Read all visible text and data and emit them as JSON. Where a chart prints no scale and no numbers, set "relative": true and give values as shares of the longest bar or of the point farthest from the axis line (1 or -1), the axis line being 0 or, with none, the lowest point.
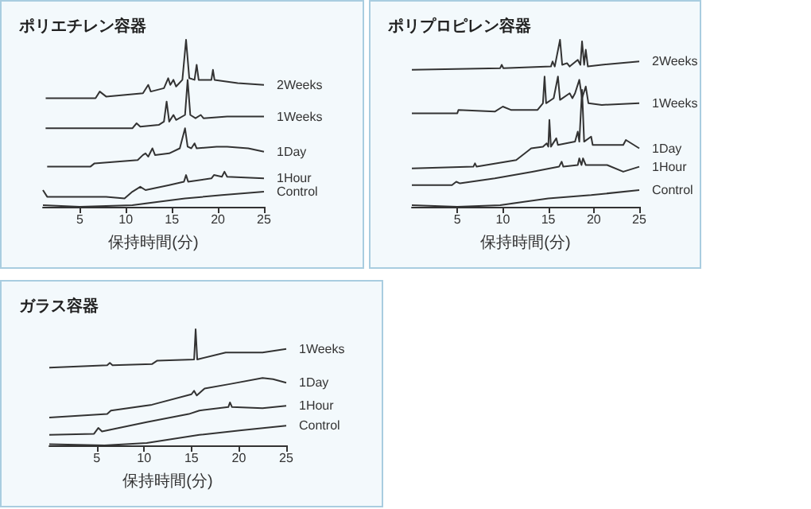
{
  "chart_data": [
    {
      "type": "line",
      "title": "ポリエチレン容器",
      "xlabel": "保持時間(分)",
      "relative": true,
      "marker": "none",
      "xlim": [
        1,
        25
      ],
      "xticks": [
        5,
        10,
        15,
        20,
        25
      ],
      "series": [
        {
          "name": "2Weeks",
          "color": "#333333",
          "x": [
            1.3,
            6.71,
            7.17,
            7.86,
            11.86,
            12.43,
            12.71,
            14.14,
            14.6,
            14.83,
            15.17,
            15.46,
            16.14,
            16.54,
            16.89,
            17.46,
            17.69,
            17.91,
            19.29,
            19.46,
            19.63,
            22.14,
            25
          ],
          "values": [
            0.65,
            0.65,
            0.69,
            0.66,
            0.68,
            0.73,
            0.69,
            0.71,
            0.77,
            0.73,
            0.76,
            0.72,
            0.76,
            1.0,
            0.77,
            0.76,
            0.85,
            0.76,
            0.76,
            0.82,
            0.76,
            0.74,
            0.73
          ]
        },
        {
          "name": "1Weeks",
          "color": "#333333",
          "x": [
            1.29,
            10.71,
            11.17,
            11.57,
            13.57,
            14.14,
            14.43,
            14.71,
            15.17,
            15.46,
            16.43,
            16.71,
            17.0,
            17.57,
            18.14,
            18.43,
            21.0,
            25
          ],
          "values": [
            0.47,
            0.47,
            0.5,
            0.48,
            0.49,
            0.51,
            0.63,
            0.51,
            0.55,
            0.52,
            0.55,
            0.76,
            0.55,
            0.53,
            0.55,
            0.53,
            0.54,
            0.54
          ]
        },
        {
          "name": "1Day",
          "color": "#333333",
          "x": [
            1.46,
            6.14,
            6.6,
            11.29,
            11.86,
            12.14,
            12.43,
            12.89,
            13.17,
            14.71,
            15.86,
            16.43,
            16.71,
            17.11,
            17.46,
            17.69,
            19.86,
            21.0,
            23.29,
            25
          ],
          "values": [
            0.24,
            0.24,
            0.26,
            0.28,
            0.31,
            0.32,
            0.3,
            0.35,
            0.31,
            0.32,
            0.35,
            0.47,
            0.36,
            0.35,
            0.38,
            0.35,
            0.36,
            0.36,
            0.35,
            0.33
          ]
        },
        {
          "name": "1Hour",
          "color": "#333333",
          "x": [
            1.0,
            1.46,
            7.86,
            9.86,
            10.71,
            11.57,
            12.14,
            14.71,
            16.31,
            16.54,
            16.77,
            19.29,
            19.57,
            20.43,
            20.71,
            21.0,
            25
          ],
          "values": [
            0.1,
            0.06,
            0.06,
            0.05,
            0.09,
            0.12,
            0.1,
            0.13,
            0.15,
            0.19,
            0.15,
            0.17,
            0.19,
            0.18,
            0.21,
            0.18,
            0.17
          ]
        },
        {
          "name": "Control",
          "color": "#333333",
          "x": [
            1.0,
            5,
            10.71,
            16.43,
            20.43,
            25
          ],
          "values": [
            0.01,
            0,
            0.01,
            0.05,
            0.07,
            0.09
          ]
        }
      ]
    },
    {
      "type": "line",
      "title": "ポリプロピレン容器",
      "xlabel": "保持時間(分)",
      "relative": true,
      "marker": "none",
      "xlim": [
        0,
        25
      ],
      "xticks": [
        5,
        10,
        15,
        20,
        25
      ],
      "series": [
        {
          "name": "2Weeks",
          "color": "#333333",
          "x": [
            0,
            9.71,
            9.88,
            10.06,
            15.29,
            15.47,
            15.71,
            16.29,
            16.53,
            17.06,
            17.35,
            18.24,
            18.53,
            18.71,
            18.94,
            19.12,
            19.35,
            20.88,
            25
          ],
          "values": [
            0.82,
            0.83,
            0.85,
            0.83,
            0.84,
            0.87,
            0.84,
            1.0,
            0.85,
            0.86,
            0.84,
            0.88,
            0.85,
            0.99,
            0.85,
            0.94,
            0.84,
            0.85,
            0.87
          ]
        },
        {
          "name": "1Weeks",
          "color": "#333333",
          "x": [
            0,
            5,
            5.12,
            9.12,
            10.0,
            10.88,
            13.82,
            14.41,
            14.59,
            14.76,
            15.59,
            16.06,
            16.29,
            17.35,
            17.65,
            17.94,
            18.41,
            18.71,
            19.12,
            19.41,
            20.88,
            25
          ],
          "values": [
            0.56,
            0.56,
            0.58,
            0.57,
            0.6,
            0.58,
            0.58,
            0.62,
            0.78,
            0.62,
            0.65,
            0.78,
            0.64,
            0.68,
            0.65,
            0.68,
            0.76,
            0.65,
            0.72,
            0.62,
            0.61,
            0.62
          ]
        },
        {
          "name": "1Day",
          "color": "#333333",
          "x": [
            0,
            6.76,
            6.94,
            7.12,
            11.47,
            12.65,
            13.12,
            14.41,
            14.82,
            15.0,
            15.12,
            15.29,
            15.88,
            16.06,
            17.94,
            18.24,
            18.41,
            18.71,
            18.94,
            19.71,
            19.88,
            23.24,
            23.53,
            25
          ],
          "values": [
            0.23,
            0.24,
            0.26,
            0.24,
            0.28,
            0.33,
            0.35,
            0.36,
            0.38,
            0.36,
            0.52,
            0.36,
            0.41,
            0.37,
            0.39,
            0.45,
            0.39,
            0.7,
            0.39,
            0.42,
            0.37,
            0.37,
            0.4,
            0.35
          ]
        },
        {
          "name": "1Hour",
          "color": "#333333",
          "x": [
            0,
            4.41,
            4.88,
            5.29,
            9.12,
            13.24,
            16.18,
            16.47,
            16.65,
            18.24,
            18.41,
            18.65,
            18.82,
            19.12,
            21.47,
            23.24,
            25
          ],
          "values": [
            0.13,
            0.13,
            0.15,
            0.14,
            0.17,
            0.21,
            0.24,
            0.27,
            0.24,
            0.25,
            0.29,
            0.25,
            0.29,
            0.25,
            0.25,
            0.21,
            0.24
          ]
        },
        {
          "name": "Control",
          "color": "#333333",
          "x": [
            0,
            5,
            9.71,
            15.0,
            19.71,
            25
          ],
          "values": [
            0.01,
            0,
            0.01,
            0.05,
            0.07,
            0.1
          ]
        }
      ]
    },
    {
      "type": "line",
      "title": "ガラス容器",
      "xlabel": "保持時間(分)",
      "relative": true,
      "marker": "none",
      "xlim": [
        0,
        25
      ],
      "xticks": [
        5,
        10,
        15,
        20,
        25
      ],
      "series": [
        {
          "name": "1Weeks",
          "color": "#333333",
          "x": [
            0,
            6.11,
            6.39,
            6.67,
            10.83,
            11.39,
            15.28,
            15.44,
            15.61,
            18.61,
            22.5,
            25
          ],
          "values": [
            0.67,
            0.69,
            0.71,
            0.69,
            0.7,
            0.73,
            0.74,
            1.0,
            0.74,
            0.8,
            0.8,
            0.83
          ]
        },
        {
          "name": "1Day",
          "color": "#333333",
          "x": [
            0,
            6.11,
            6.5,
            10.83,
            15.0,
            15.28,
            15.56,
            16.39,
            19.17,
            22.5,
            23.61,
            25
          ],
          "values": [
            0.24,
            0.27,
            0.3,
            0.35,
            0.44,
            0.47,
            0.43,
            0.49,
            0.53,
            0.58,
            0.57,
            0.54
          ]
        },
        {
          "name": "1Hour",
          "color": "#333333",
          "x": [
            0,
            4.72,
            5.17,
            5.56,
            10.28,
            14.72,
            15.83,
            18.89,
            19.06,
            19.28,
            22.5,
            25
          ],
          "values": [
            0.09,
            0.1,
            0.15,
            0.12,
            0.2,
            0.27,
            0.3,
            0.33,
            0.37,
            0.33,
            0.32,
            0.34
          ]
        },
        {
          "name": "Control",
          "color": "#333333",
          "x": [
            0,
            5.83,
            10.28,
            15.83,
            20.28,
            25
          ],
          "values": [
            0.01,
            0,
            0.02,
            0.09,
            0.13,
            0.17
          ]
        }
      ]
    }
  ]
}
